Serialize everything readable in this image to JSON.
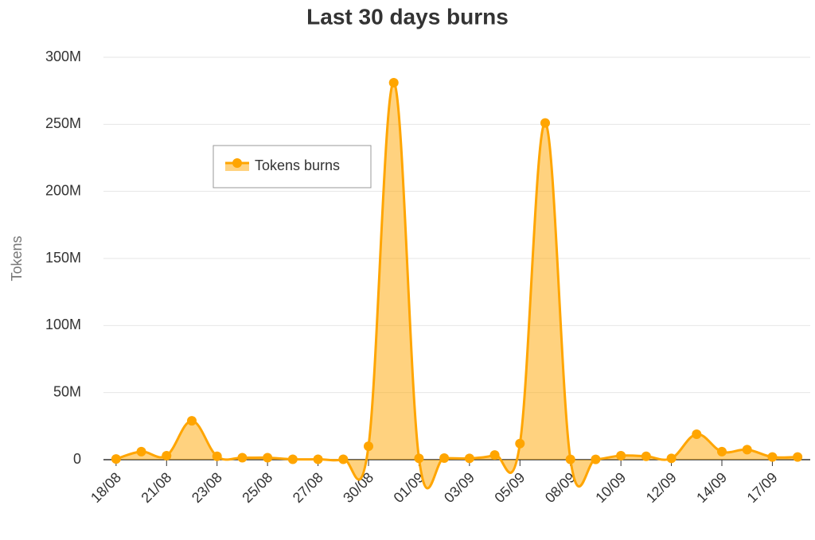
{
  "chart_data": {
    "type": "area",
    "title": "Last 30 days burns",
    "y_label": "Tokens",
    "categories": [
      "18/08",
      null,
      "21/08",
      null,
      "23/08",
      null,
      "25/08",
      null,
      "27/08",
      null,
      "30/08",
      null,
      "01/09",
      null,
      "03/09",
      null,
      "05/09",
      null,
      "08/09",
      null,
      "10/09",
      null,
      "12/09",
      null,
      "14/09",
      null,
      "17/09",
      null
    ],
    "series": [
      {
        "name": "Tokens burns",
        "color": "#ffa500",
        "values": [
          500000,
          6000000,
          3000000,
          29000000,
          2500000,
          1500000,
          1500000,
          300000,
          300000,
          300000,
          10000000,
          281000000,
          1000000,
          1200000,
          1000000,
          3500000,
          12000000,
          251000000,
          200000,
          200000,
          3000000,
          2500000,
          1000000,
          19000000,
          6000000,
          7500000,
          2000000,
          2000000
        ]
      }
    ],
    "ylim": [
      0,
      300000000
    ],
    "yticks": [
      {
        "value": 0,
        "label": "0"
      },
      {
        "value": 50000000,
        "label": "50M"
      },
      {
        "value": 100000000,
        "label": "100M"
      },
      {
        "value": 150000000,
        "label": "150M"
      },
      {
        "value": 200000000,
        "label": "200M"
      },
      {
        "value": 250000000,
        "label": "250M"
      },
      {
        "value": 300000000,
        "label": "300M"
      }
    ],
    "grid": true,
    "legend_position": "upper left"
  }
}
